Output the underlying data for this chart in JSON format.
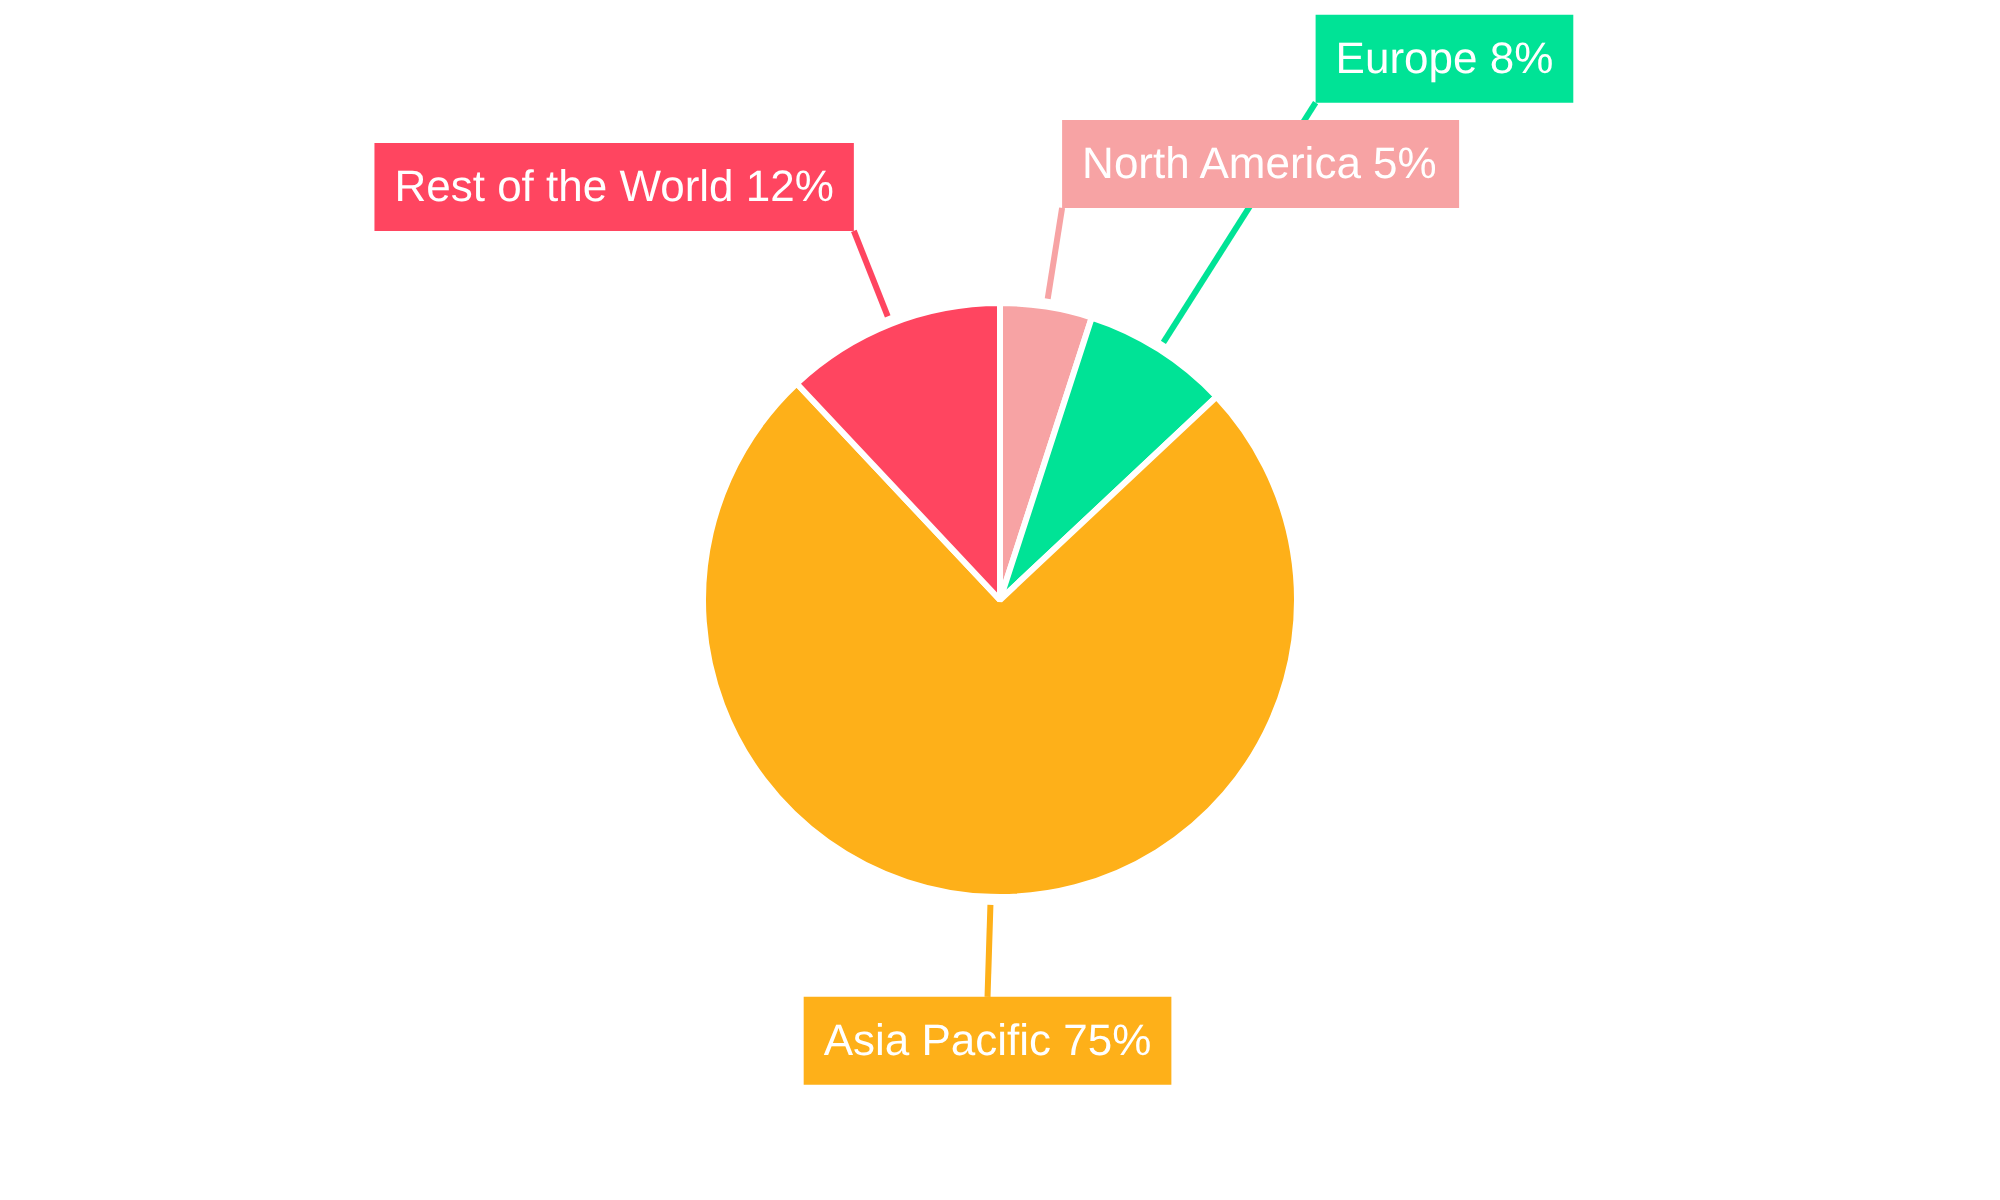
{
  "chart_data": {
    "type": "pie",
    "categories": [
      "North America",
      "Europe",
      "Asia Pacific",
      "Rest of the World"
    ],
    "values": [
      5,
      8,
      75,
      12
    ],
    "value_labels": [
      "5%",
      "8%",
      "75%",
      "12%"
    ],
    "colors": [
      "#f7a3a4",
      "#00e396",
      "#feb019",
      "#ff4560"
    ],
    "legend": false
  }
}
